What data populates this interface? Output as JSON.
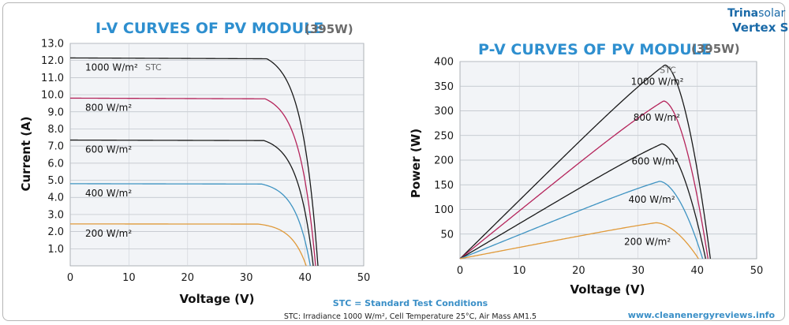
{
  "brand": {
    "line1_bold": "Trina",
    "line1_light": "solar",
    "line2": "Vertex S",
    "color_primary": "#1a6aa8",
    "color_accent": "#d7252f"
  },
  "footer": {
    "stc_definition": "STC = Standard Test Conditions",
    "stc_details": "STC: Irradiance 1000 W/m², Cell Temperature 25°C, Air Mass AM1.5",
    "website": "www.cleanenergyreviews.info",
    "accent_color": "#3a8fc7"
  },
  "chart_data": [
    {
      "type": "line",
      "title": "I-V CURVES OF PV MODULE",
      "subtitle": "(395W)",
      "title_color": "#2e8fcf",
      "xlabel": "Voltage (V)",
      "ylabel": "Current (A)",
      "xlim": [
        0,
        50
      ],
      "ylim": [
        0,
        13
      ],
      "xticks": [
        "0",
        "10",
        "20",
        "30",
        "40",
        "50"
      ],
      "yticks": [
        "1.0",
        "2.0",
        "3.0",
        "4.0",
        "5.0",
        "6.0",
        "7.0",
        "8.0",
        "9.0",
        "10.0",
        "11.0",
        "12.0",
        "13.0"
      ],
      "grid": true,
      "stc_tag": "STC",
      "series": [
        {
          "name": "1000 W/m²",
          "color": "#1a1a1a",
          "isc": 12.15,
          "vknee": 33.5,
          "voc": 42.2,
          "stc": true
        },
        {
          "name": "800 W/m²",
          "color": "#b5245b",
          "isc": 9.8,
          "vknee": 33.2,
          "voc": 41.8
        },
        {
          "name": "600 W/m²",
          "color": "#1a1a1a",
          "isc": 7.35,
          "vknee": 33.0,
          "voc": 41.4
        },
        {
          "name": "400 W/m²",
          "color": "#3e93c2",
          "isc": 4.8,
          "vknee": 32.6,
          "voc": 40.9
        },
        {
          "name": "200 W/m²",
          "color": "#e09a3a",
          "isc": 2.45,
          "vknee": 32.0,
          "voc": 40.2
        }
      ]
    },
    {
      "type": "line",
      "title": "P-V CURVES OF PV MODULE",
      "subtitle": "(395W)",
      "title_color": "#2e8fcf",
      "xlabel": "Voltage (V)",
      "ylabel": "Power (W)",
      "xlim": [
        0,
        50
      ],
      "ylim": [
        0,
        400
      ],
      "xticks": [
        "0",
        "10",
        "20",
        "30",
        "40",
        "50"
      ],
      "yticks": [
        "50",
        "100",
        "150",
        "200",
        "250",
        "300",
        "350",
        "400"
      ],
      "grid": true,
      "stc_tag": "STC",
      "series": [
        {
          "name": "1000 W/m²",
          "color": "#1a1a1a",
          "vmp": 34.5,
          "pmax": 393,
          "voc": 42.2,
          "stc": true
        },
        {
          "name": "800 W/m²",
          "color": "#b5245b",
          "vmp": 34.3,
          "pmax": 320,
          "voc": 41.8
        },
        {
          "name": "600 W/m²",
          "color": "#1a1a1a",
          "vmp": 34.0,
          "pmax": 233,
          "voc": 41.4
        },
        {
          "name": "400 W/m²",
          "color": "#3e93c2",
          "vmp": 33.6,
          "pmax": 157,
          "voc": 40.9
        },
        {
          "name": "200 W/m²",
          "color": "#e09a3a",
          "vmp": 33.0,
          "pmax": 73,
          "voc": 40.2
        }
      ]
    }
  ]
}
